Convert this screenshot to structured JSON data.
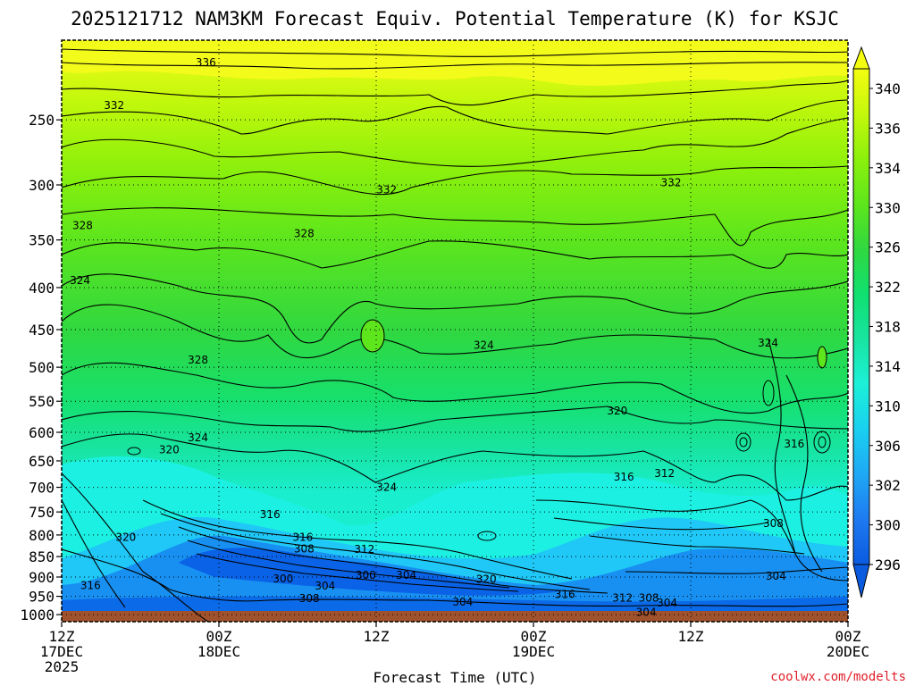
{
  "chart_data": {
    "type": "contour",
    "title": "2025121712 NAM3KM Forecast Equiv. Potential Temperature (K) for KSJC",
    "xlabel": "Forecast Time (UTC)",
    "ylabel": "",
    "credit": "coolwx.com/modelts",
    "x_ticks": [
      {
        "hour": 0,
        "lines": [
          "12Z",
          "17DEC",
          "2025"
        ]
      },
      {
        "hour": 12,
        "lines": [
          "00Z",
          "18DEC"
        ]
      },
      {
        "hour": 24,
        "lines": [
          "12Z"
        ]
      },
      {
        "hour": 36,
        "lines": [
          "00Z",
          "19DEC"
        ]
      },
      {
        "hour": 48,
        "lines": [
          "12Z"
        ]
      },
      {
        "hour": 60,
        "lines": [
          "00Z",
          "20DEC"
        ]
      }
    ],
    "xlim": [
      0,
      60
    ],
    "y_ticks": [
      250,
      300,
      350,
      400,
      450,
      500,
      550,
      600,
      650,
      700,
      750,
      800,
      850,
      900,
      950,
      1000
    ],
    "ylim_hPa": [
      200,
      1020
    ],
    "colorbar": {
      "ticks": [
        340,
        336,
        334,
        330,
        326,
        322,
        318,
        314,
        310,
        306,
        302,
        300,
        296
      ],
      "stops": [
        {
          "value": 296,
          "color": "#0a5be0"
        },
        {
          "value": 300,
          "color": "#1e7af0"
        },
        {
          "value": 304,
          "color": "#1fa8f5"
        },
        {
          "value": 308,
          "color": "#19d0f0"
        },
        {
          "value": 312,
          "color": "#1cf0d8"
        },
        {
          "value": 316,
          "color": "#18e4a0"
        },
        {
          "value": 320,
          "color": "#10e070"
        },
        {
          "value": 324,
          "color": "#30d840"
        },
        {
          "value": 328,
          "color": "#5ee61c"
        },
        {
          "value": 332,
          "color": "#8cf00c"
        },
        {
          "value": 336,
          "color": "#c4f80c"
        },
        {
          "value": 340,
          "color": "#f4fc10"
        }
      ]
    },
    "contour_labels": [
      {
        "text": "336",
        "hour": 11,
        "p": 213
      },
      {
        "text": "332",
        "hour": 4,
        "p": 240
      },
      {
        "text": "332",
        "hour": 24.8,
        "p": 304
      },
      {
        "text": "332",
        "hour": 46.5,
        "p": 298
      },
      {
        "text": "328",
        "hour": 1.6,
        "p": 336
      },
      {
        "text": "328",
        "hour": 18.5,
        "p": 344
      },
      {
        "text": "328",
        "hour": 10.4,
        "p": 490
      },
      {
        "text": "324",
        "hour": 1.4,
        "p": 392
      },
      {
        "text": "324",
        "hour": 32.2,
        "p": 470
      },
      {
        "text": "324",
        "hour": 53.9,
        "p": 467
      },
      {
        "text": "324",
        "hour": 10.4,
        "p": 609
      },
      {
        "text": "324",
        "hour": 24.8,
        "p": 700
      },
      {
        "text": "320",
        "hour": 42.4,
        "p": 565
      },
      {
        "text": "320",
        "hour": 8.2,
        "p": 630
      },
      {
        "text": "320",
        "hour": 4.9,
        "p": 805
      },
      {
        "text": "320",
        "hour": 32.4,
        "p": 906
      },
      {
        "text": "316",
        "hour": 55.9,
        "p": 620
      },
      {
        "text": "316",
        "hour": 42.9,
        "p": 680
      },
      {
        "text": "316",
        "hour": 15.9,
        "p": 755
      },
      {
        "text": "316",
        "hour": 18.4,
        "p": 805
      },
      {
        "text": "316",
        "hour": 2.2,
        "p": 922
      },
      {
        "text": "316",
        "hour": 38.4,
        "p": 945
      },
      {
        "text": "312",
        "hour": 46.0,
        "p": 673
      },
      {
        "text": "312",
        "hour": 23.1,
        "p": 833
      },
      {
        "text": "312",
        "hour": 42.8,
        "p": 955
      },
      {
        "text": "308",
        "hour": 54.3,
        "p": 775
      },
      {
        "text": "308",
        "hour": 18.5,
        "p": 832
      },
      {
        "text": "308",
        "hour": 18.9,
        "p": 956
      },
      {
        "text": "308",
        "hour": 44.8,
        "p": 955
      },
      {
        "text": "304",
        "hour": 54.5,
        "p": 898
      },
      {
        "text": "304",
        "hour": 26.3,
        "p": 895
      },
      {
        "text": "304",
        "hour": 20.1,
        "p": 923
      },
      {
        "text": "304",
        "hour": 30.6,
        "p": 965
      },
      {
        "text": "304",
        "hour": 46.2,
        "p": 968
      },
      {
        "text": "304",
        "hour": 44.6,
        "p": 993
      },
      {
        "text": "300",
        "hour": 16.9,
        "p": 905
      },
      {
        "text": "300",
        "hour": 23.2,
        "p": 895
      }
    ]
  }
}
